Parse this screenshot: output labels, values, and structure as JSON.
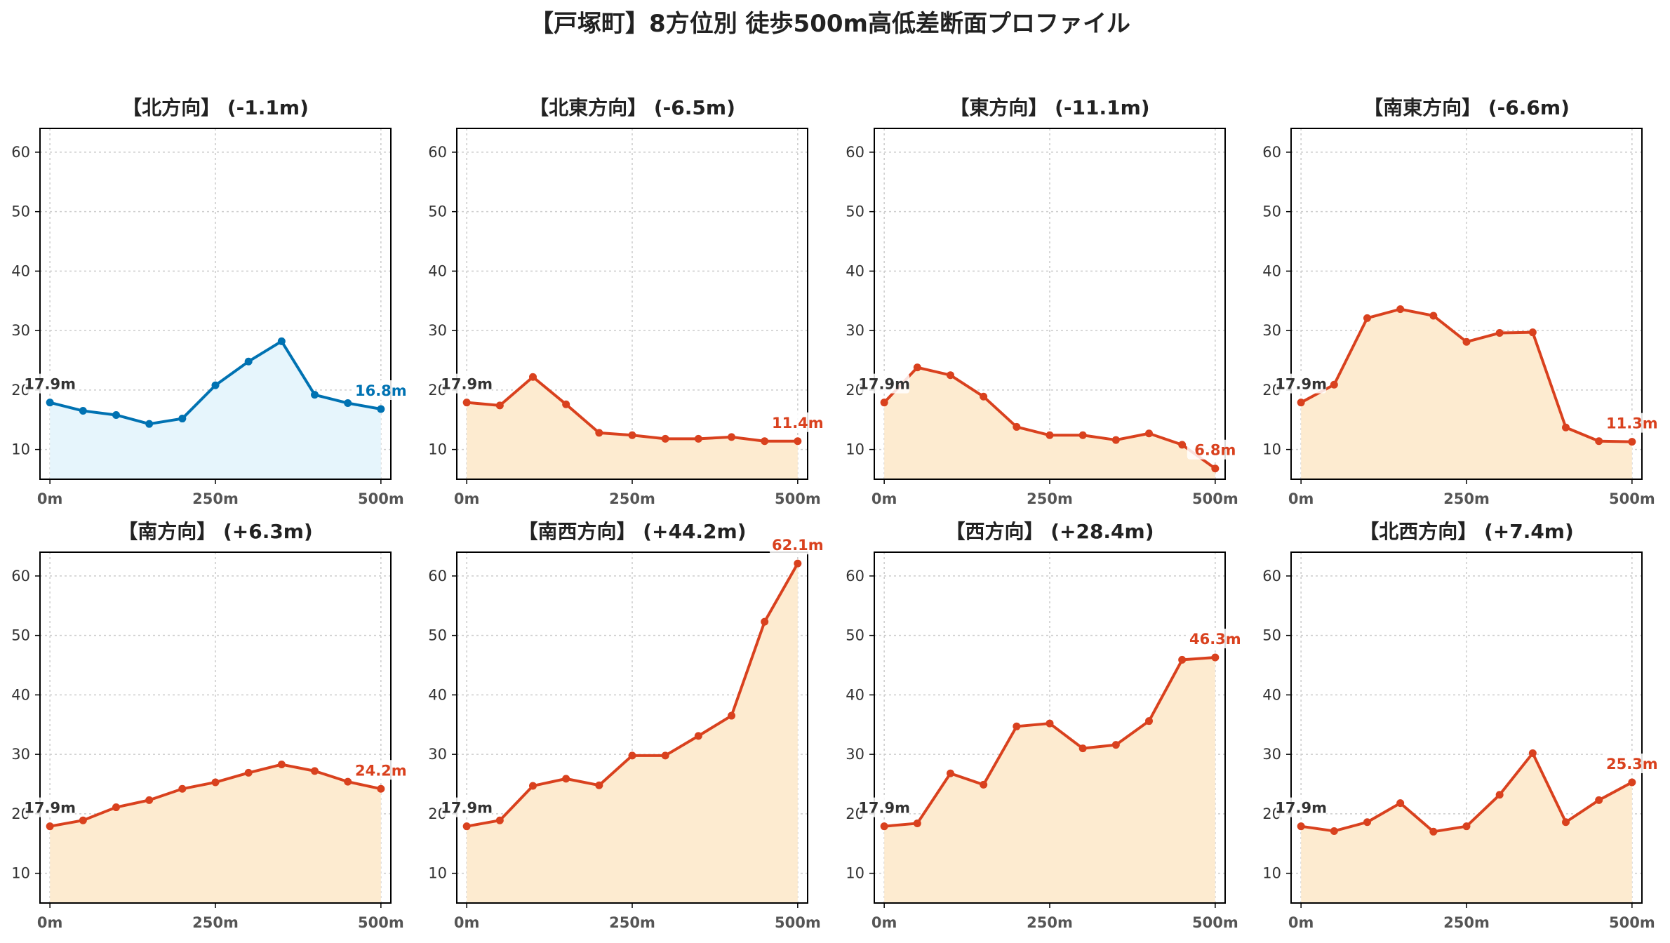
{
  "title": "【戸塚町】8方位別 徒歩500m高低差断面プロファイル",
  "colors": {
    "descent_line": "#0072B2",
    "descent_fill": "#E6F5FC",
    "ascent_line": "#D9411E",
    "ascent_fill": "#FDEBD0",
    "grid": "#cccccc",
    "axes": "#000000"
  },
  "chart_data": [
    {
      "type": "area",
      "title": "【北方向】 (-1.1m)",
      "trend": "descent",
      "x": [
        0,
        50,
        100,
        150,
        200,
        250,
        300,
        350,
        400,
        450,
        500
      ],
      "values": [
        17.9,
        16.5,
        15.8,
        14.3,
        15.2,
        20.8,
        24.8,
        28.2,
        19.2,
        17.8,
        16.8
      ],
      "start_label": "17.9m",
      "end_label": "16.8m",
      "xticks": [
        "0m",
        "250m",
        "500m"
      ],
      "yticks": [
        10,
        20,
        30,
        40,
        50,
        60
      ],
      "ylim": [
        5,
        64
      ],
      "grid": true
    },
    {
      "type": "area",
      "title": "【北東方向】 (-6.5m)",
      "trend": "ascent",
      "x": [
        0,
        50,
        100,
        150,
        200,
        250,
        300,
        350,
        400,
        450,
        500
      ],
      "values": [
        17.9,
        17.4,
        22.2,
        17.6,
        12.8,
        12.4,
        11.8,
        11.8,
        12.1,
        11.4,
        11.4
      ],
      "start_label": "17.9m",
      "end_label": "11.4m",
      "xticks": [
        "0m",
        "250m",
        "500m"
      ],
      "yticks": [
        10,
        20,
        30,
        40,
        50,
        60
      ],
      "ylim": [
        5,
        64
      ],
      "grid": true
    },
    {
      "type": "area",
      "title": "【東方向】 (-11.1m)",
      "trend": "ascent",
      "x": [
        0,
        50,
        100,
        150,
        200,
        250,
        300,
        350,
        400,
        450,
        500
      ],
      "values": [
        17.9,
        23.8,
        22.5,
        18.9,
        13.8,
        12.4,
        12.4,
        11.6,
        12.7,
        10.8,
        6.8
      ],
      "start_label": "17.9m",
      "end_label": "6.8m",
      "xticks": [
        "0m",
        "250m",
        "500m"
      ],
      "yticks": [
        10,
        20,
        30,
        40,
        50,
        60
      ],
      "ylim": [
        5,
        64
      ],
      "grid": true
    },
    {
      "type": "area",
      "title": "【南東方向】 (-6.6m)",
      "trend": "ascent",
      "x": [
        0,
        50,
        100,
        150,
        200,
        250,
        300,
        350,
        400,
        450,
        500
      ],
      "values": [
        17.9,
        20.9,
        32.1,
        33.6,
        32.5,
        28.1,
        29.6,
        29.7,
        13.7,
        11.4,
        11.3
      ],
      "start_label": "17.9m",
      "end_label": "11.3m",
      "xticks": [
        "0m",
        "250m",
        "500m"
      ],
      "yticks": [
        10,
        20,
        30,
        40,
        50,
        60
      ],
      "ylim": [
        5,
        64
      ],
      "grid": true
    },
    {
      "type": "area",
      "title": "【南方向】 (+6.3m)",
      "trend": "ascent",
      "x": [
        0,
        50,
        100,
        150,
        200,
        250,
        300,
        350,
        400,
        450,
        500
      ],
      "values": [
        17.9,
        18.9,
        21.1,
        22.3,
        24.2,
        25.3,
        26.9,
        28.3,
        27.2,
        25.4,
        24.2
      ],
      "start_label": "17.9m",
      "end_label": "24.2m",
      "xticks": [
        "0m",
        "250m",
        "500m"
      ],
      "yticks": [
        10,
        20,
        30,
        40,
        50,
        60
      ],
      "ylim": [
        5,
        64
      ],
      "grid": true
    },
    {
      "type": "area",
      "title": "【南西方向】 (+44.2m)",
      "trend": "ascent",
      "x": [
        0,
        50,
        100,
        150,
        200,
        250,
        300,
        350,
        400,
        450,
        500
      ],
      "values": [
        17.9,
        18.9,
        24.7,
        25.9,
        24.8,
        29.8,
        29.8,
        33.1,
        36.5,
        52.3,
        62.1
      ],
      "start_label": "17.9m",
      "end_label": "62.1m",
      "xticks": [
        "0m",
        "250m",
        "500m"
      ],
      "yticks": [
        10,
        20,
        30,
        40,
        50,
        60
      ],
      "ylim": [
        5,
        64
      ],
      "grid": true
    },
    {
      "type": "area",
      "title": "【西方向】 (+28.4m)",
      "trend": "ascent",
      "x": [
        0,
        50,
        100,
        150,
        200,
        250,
        300,
        350,
        400,
        450,
        500
      ],
      "values": [
        17.9,
        18.4,
        26.8,
        24.9,
        34.7,
        35.2,
        31.0,
        31.6,
        35.6,
        45.9,
        46.3
      ],
      "start_label": "17.9m",
      "end_label": "46.3m",
      "xticks": [
        "0m",
        "250m",
        "500m"
      ],
      "yticks": [
        10,
        20,
        30,
        40,
        50,
        60
      ],
      "ylim": [
        5,
        64
      ],
      "grid": true
    },
    {
      "type": "area",
      "title": "【北西方向】 (+7.4m)",
      "trend": "ascent",
      "x": [
        0,
        50,
        100,
        150,
        200,
        250,
        300,
        350,
        400,
        450,
        500
      ],
      "values": [
        17.9,
        17.1,
        18.6,
        21.8,
        17.0,
        17.9,
        23.2,
        30.2,
        18.6,
        22.3,
        25.3
      ],
      "start_label": "17.9m",
      "end_label": "25.3m",
      "xticks": [
        "0m",
        "250m",
        "500m"
      ],
      "yticks": [
        10,
        20,
        30,
        40,
        50,
        60
      ],
      "ylim": [
        5,
        64
      ],
      "grid": true
    }
  ]
}
